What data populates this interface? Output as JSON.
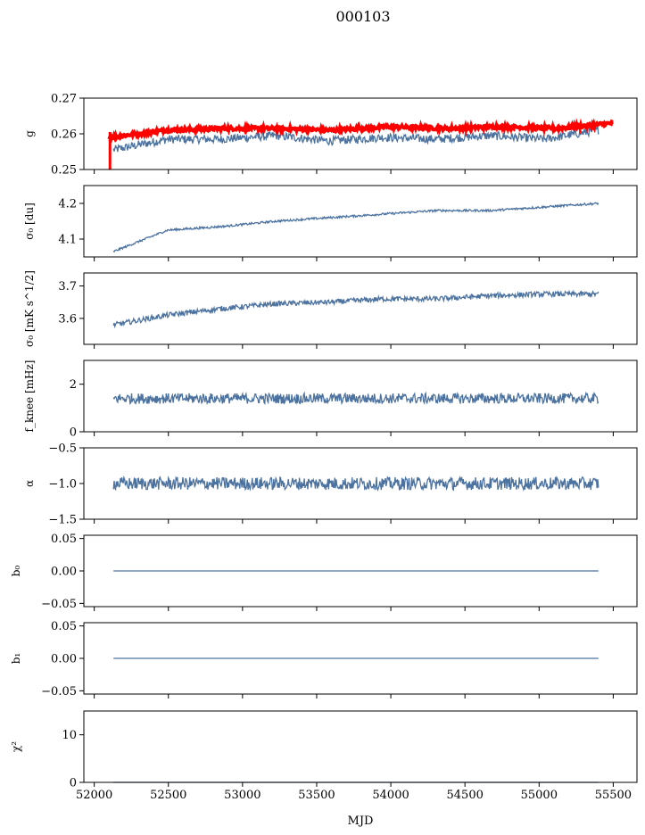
{
  "title": "000103",
  "xlabel": "MJD",
  "colors": {
    "series": "#4c72a0",
    "highlight": "#ff0000",
    "axis": "#000000"
  },
  "chart_data": [
    {
      "id": "g",
      "type": "line",
      "ylabel": "g",
      "ylim": [
        0.25,
        0.27
      ],
      "yticks": [
        "0.27",
        "0.26",
        "0.25"
      ],
      "xlim": [
        51930,
        55660
      ],
      "grid": false,
      "series": [
        {
          "color": "#4c72a0",
          "x_range": [
            52130,
            55400
          ],
          "approx_level": [
            0.2555,
            0.2585,
            0.2585,
            0.2595,
            0.258,
            0.259,
            0.2585,
            0.2595,
            0.2585,
            0.261
          ],
          "noise": 0.0012
        },
        {
          "color": "#ff0000",
          "x_range": [
            52100,
            55500
          ],
          "approx_level": [
            0.259,
            0.261,
            0.2615,
            0.2615,
            0.261,
            0.262,
            0.2615,
            0.262,
            0.2615,
            0.263
          ],
          "noise": 0.0005
        }
      ]
    },
    {
      "id": "sigma0-du",
      "type": "line",
      "ylabel": "σ₀ [du]",
      "ylim": [
        4.05,
        4.25
      ],
      "yticks": [
        "4.2",
        "4.1"
      ],
      "xlim": [
        51930,
        55660
      ],
      "grid": false,
      "series": [
        {
          "color": "#4c72a0",
          "x_range": [
            52130,
            55400
          ],
          "approx_level": [
            4.065,
            4.125,
            4.135,
            4.15,
            4.16,
            4.17,
            4.18,
            4.18,
            4.19,
            4.2
          ],
          "noise": 0.003
        }
      ]
    },
    {
      "id": "sigma0-mk",
      "type": "line",
      "ylabel": "σ₀ [mK s^1/2]",
      "ylim": [
        3.52,
        3.74
      ],
      "yticks": [
        "3.7",
        "3.6"
      ],
      "xlim": [
        51930,
        55660
      ],
      "grid": false,
      "series": [
        {
          "color": "#4c72a0",
          "x_range": [
            52130,
            55400
          ],
          "approx_level": [
            3.58,
            3.61,
            3.63,
            3.645,
            3.65,
            3.66,
            3.66,
            3.67,
            3.675,
            3.675
          ],
          "noise": 0.008
        }
      ]
    },
    {
      "id": "fknee",
      "type": "line",
      "ylabel": "f_knee [mHz]",
      "ylim": [
        0,
        3
      ],
      "yticks": [
        "2",
        "0"
      ],
      "xlim": [
        51930,
        55660
      ],
      "grid": false,
      "series": [
        {
          "color": "#4c72a0",
          "x_range": [
            52130,
            55400
          ],
          "approx_level": [
            1.4,
            1.4,
            1.4,
            1.4,
            1.4,
            1.4,
            1.4,
            1.4,
            1.4,
            1.4
          ],
          "noise": 0.22
        }
      ]
    },
    {
      "id": "alpha",
      "type": "line",
      "ylabel": "α",
      "ylim": [
        -1.5,
        -0.5
      ],
      "yticks": [
        "−0.5",
        "−1.0",
        "−1.5"
      ],
      "xlim": [
        51930,
        55660
      ],
      "grid": false,
      "series": [
        {
          "color": "#4c72a0",
          "x_range": [
            52130,
            55400
          ],
          "approx_level": [
            -1.0,
            -1.0,
            -1.0,
            -1.0,
            -1.0,
            -1.0,
            -1.0,
            -1.0,
            -1.0,
            -1.0
          ],
          "noise": 0.09
        }
      ]
    },
    {
      "id": "b0",
      "type": "line",
      "ylabel": "b₀",
      "ylim": [
        -0.055,
        0.055
      ],
      "yticks": [
        "0.05",
        "0.00",
        "−0.05"
      ],
      "xlim": [
        51930,
        55660
      ],
      "grid": false,
      "series": [
        {
          "color": "#4c72a0",
          "x_range": [
            52130,
            55400
          ],
          "approx_level": [
            0,
            0
          ],
          "noise": 0
        }
      ]
    },
    {
      "id": "b1",
      "type": "line",
      "ylabel": "b₁",
      "ylim": [
        -0.055,
        0.055
      ],
      "yticks": [
        "0.05",
        "0.00",
        "−0.05"
      ],
      "xlim": [
        51930,
        55660
      ],
      "grid": false,
      "series": [
        {
          "color": "#4c72a0",
          "x_range": [
            52130,
            55400
          ],
          "approx_level": [
            0,
            0
          ],
          "noise": 0
        }
      ]
    },
    {
      "id": "chi2",
      "type": "line",
      "ylabel": "χ²",
      "ylim": [
        0,
        15
      ],
      "yticks": [
        "10",
        "0"
      ],
      "xticks": [
        "52000",
        "52500",
        "53000",
        "53500",
        "54000",
        "54500",
        "55000",
        "55500"
      ],
      "xlim": [
        51930,
        55660
      ],
      "grid": false,
      "series": [
        {
          "color": "#4c72a0",
          "x_range": [
            52130,
            55400
          ],
          "approx_level": [
            0,
            0
          ],
          "noise": 0
        }
      ]
    }
  ]
}
